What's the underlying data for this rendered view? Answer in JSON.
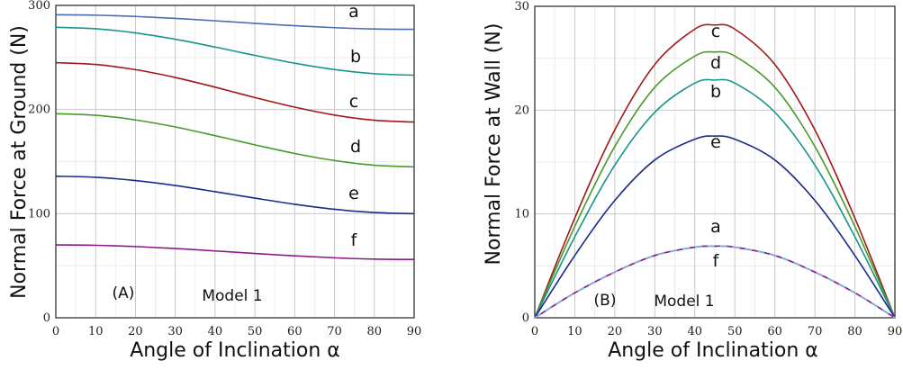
{
  "chart_data": [
    {
      "type": "line",
      "panel": "(A)",
      "annotation": "Model 1",
      "xlabel": "Angle of Inclination α",
      "ylabel": "Normal Force at Ground (N)",
      "xlim": [
        0,
        90
      ],
      "ylim": [
        0,
        300
      ],
      "xticks": [
        "0",
        "10",
        "20",
        "30",
        "40",
        "50",
        "60",
        "70",
        "80",
        "90"
      ],
      "yticks": [
        "0",
        "100",
        "200",
        "300"
      ],
      "grid": true,
      "x": [
        0,
        10,
        20,
        30,
        40,
        45,
        50,
        60,
        70,
        80,
        90
      ],
      "series": [
        {
          "name": "a",
          "color": "#4a6db0",
          "values": [
            291,
            290.6,
            289.4,
            287.5,
            285.2,
            284,
            282.8,
            280.5,
            278.6,
            277.4,
            277
          ]
        },
        {
          "name": "b",
          "color": "#16958a",
          "values": [
            279,
            277.6,
            273.6,
            267.5,
            260,
            256,
            252,
            244.5,
            238.4,
            234.4,
            233
          ]
        },
        {
          "name": "c",
          "color": "#a01818",
          "values": [
            245,
            243.3,
            238.3,
            230.8,
            221.5,
            216.5,
            211.5,
            202.3,
            194.7,
            189.7,
            188
          ]
        },
        {
          "name": "d",
          "color": "#4a9a2a",
          "values": [
            196,
            194.5,
            190,
            183.3,
            174.9,
            170.5,
            166.1,
            157.8,
            151,
            146.5,
            145
          ]
        },
        {
          "name": "e",
          "color": "#1a2a8a",
          "values": [
            136,
            134.9,
            131.8,
            127,
            121.1,
            118,
            114.9,
            109,
            104.2,
            101.1,
            100
          ]
        },
        {
          "name": "f",
          "color": "#8a1a8a",
          "values": [
            70,
            69.6,
            68.4,
            66.5,
            64.2,
            63,
            61.8,
            59.5,
            57.6,
            56.4,
            56
          ]
        }
      ]
    },
    {
      "type": "line",
      "panel": "(B)",
      "annotation": "Model 1",
      "xlabel": "Angle of Inclination α",
      "ylabel": "Normal Force at Wall (N)",
      "xlim": [
        0,
        90
      ],
      "ylim": [
        0,
        30
      ],
      "xticks": [
        "0",
        "10",
        "20",
        "30",
        "40",
        "50",
        "60",
        "70",
        "80",
        "90"
      ],
      "yticks": [
        "0",
        "10",
        "20",
        "30"
      ],
      "grid": true,
      "x": [
        0,
        10,
        20,
        30,
        40,
        45,
        50,
        60,
        70,
        80,
        90
      ],
      "series": [
        {
          "name": "c",
          "color": "#a01818",
          "values": [
            0,
            9.6,
            18.1,
            24.4,
            27.8,
            28.2,
            27.8,
            24.4,
            18.1,
            9.6,
            0
          ]
        },
        {
          "name": "d",
          "color": "#4a9a2a",
          "values": [
            0,
            8.8,
            16.5,
            22.2,
            25.2,
            25.6,
            25.2,
            22.2,
            16.5,
            8.8,
            0
          ]
        },
        {
          "name": "b",
          "color": "#16958a",
          "values": [
            0,
            7.8,
            14.7,
            19.8,
            22.6,
            22.9,
            22.6,
            19.8,
            14.7,
            7.8,
            0
          ]
        },
        {
          "name": "e",
          "color": "#1a2a8a",
          "values": [
            0,
            6.0,
            11.3,
            15.2,
            17.2,
            17.5,
            17.2,
            15.2,
            11.3,
            6.0,
            0
          ]
        },
        {
          "name": "a",
          "color": "#7fb0e0",
          "dashed": true,
          "values": [
            0,
            2.4,
            4.4,
            6.0,
            6.8,
            6.9,
            6.8,
            6.0,
            4.4,
            2.4,
            0
          ]
        },
        {
          "name": "f",
          "color": "#8a1a8a",
          "values": [
            0,
            2.4,
            4.4,
            6.0,
            6.8,
            6.9,
            6.8,
            6.0,
            4.4,
            2.4,
            0
          ]
        }
      ]
    }
  ]
}
